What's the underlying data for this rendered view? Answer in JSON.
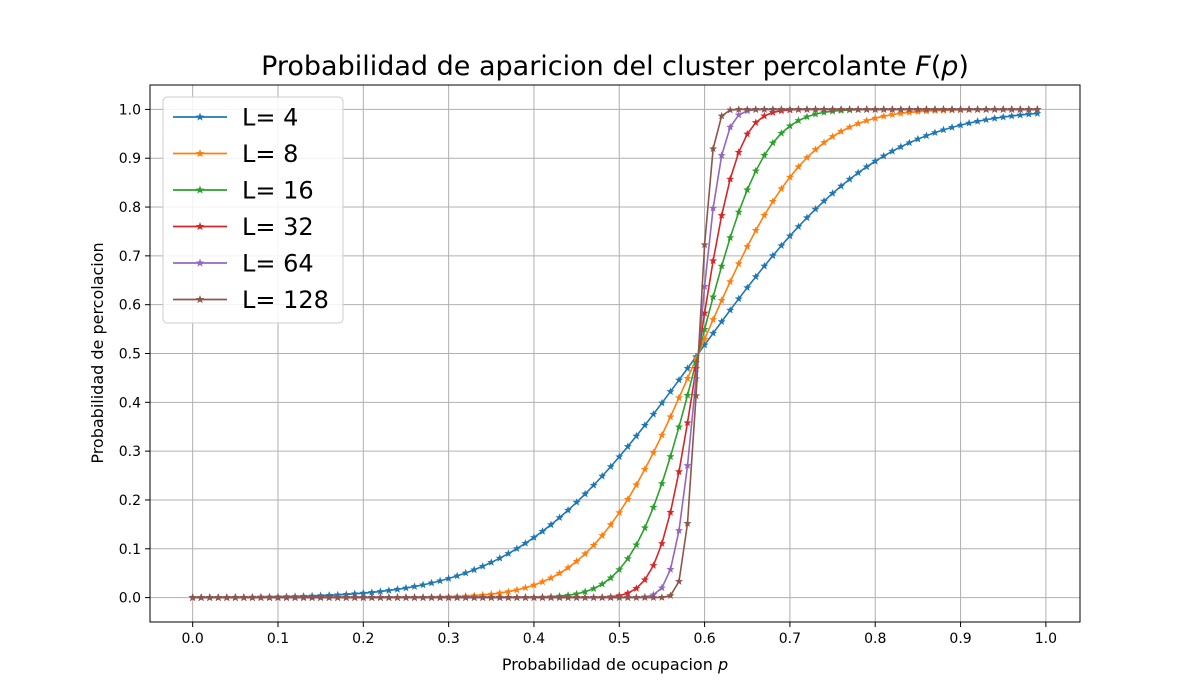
{
  "chart_data": {
    "type": "line",
    "title": "Probabilidad de aparicion del cluster percolante ",
    "title_math": "F(p)",
    "title_math_parts": [
      "F",
      "(",
      "p",
      ")"
    ],
    "xlabel": "Probabilidad de ocupacion ",
    "xlabel_math": "p",
    "ylabel": "Probabilidad de percolacion",
    "xlim": [
      -0.05,
      1.04
    ],
    "ylim": [
      -0.05,
      1.05
    ],
    "xticks": [
      0.0,
      0.1,
      0.2,
      0.3,
      0.4,
      0.5,
      0.6,
      0.7,
      0.8,
      0.9,
      1.0
    ],
    "xtick_labels": [
      "0.0",
      "0.1",
      "0.2",
      "0.3",
      "0.4",
      "0.5",
      "0.6",
      "0.7",
      "0.8",
      "0.9",
      "1.0"
    ],
    "yticks": [
      0.0,
      0.1,
      0.2,
      0.3,
      0.4,
      0.5,
      0.6,
      0.7,
      0.8,
      0.9,
      1.0
    ],
    "ytick_labels": [
      "0.0",
      "0.1",
      "0.2",
      "0.3",
      "0.4",
      "0.5",
      "0.6",
      "0.7",
      "0.8",
      "0.9",
      "1.0"
    ],
    "grid": true,
    "legend_position": "top-left",
    "marker": "star",
    "x_range": [
      0.0,
      0.99
    ],
    "x_step": 0.01,
    "series": [
      {
        "name": "L= 4",
        "L": 4,
        "color": "#1f77b4"
      },
      {
        "name": "L= 8",
        "L": 8,
        "color": "#ff7f0e"
      },
      {
        "name": "L= 16",
        "L": 16,
        "color": "#2ca02c"
      },
      {
        "name": "L= 32",
        "L": 32,
        "color": "#d62728"
      },
      {
        "name": "L= 64",
        "L": 64,
        "color": "#9467bd"
      },
      {
        "name": "L= 128",
        "L": 128,
        "color": "#8c564b"
      }
    ]
  }
}
